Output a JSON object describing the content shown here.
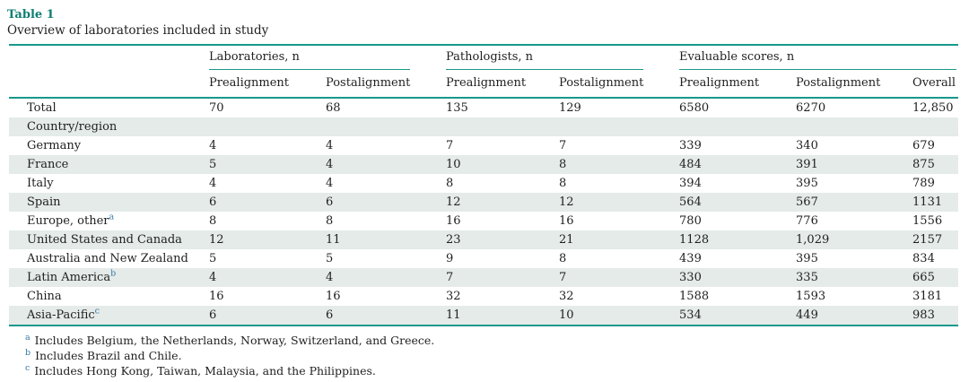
{
  "table": {
    "label": "Table 1",
    "caption": "Overview of laboratories included in study",
    "col_groups": [
      {
        "label": "Laboratories, n",
        "cols": [
          "Prealignment",
          "Postalignment"
        ]
      },
      {
        "label": "Pathologists, n",
        "cols": [
          "Prealignment",
          "Postalignment"
        ]
      },
      {
        "label": "Evaluable scores, n",
        "cols": [
          "Prealignment",
          "Postalignment",
          "Overall"
        ]
      }
    ],
    "rows": [
      {
        "label": "Total",
        "sup": "",
        "section": false,
        "values": [
          "70",
          "68",
          "135",
          "129",
          "6580",
          "6270",
          "12,850"
        ]
      },
      {
        "label": "Country/region",
        "sup": "",
        "section": true,
        "values": [
          "",
          "",
          "",
          "",
          "",
          "",
          ""
        ]
      },
      {
        "label": "Germany",
        "sup": "",
        "section": false,
        "values": [
          "4",
          "4",
          "7",
          "7",
          "339",
          "340",
          "679"
        ]
      },
      {
        "label": "France",
        "sup": "",
        "section": false,
        "values": [
          "5",
          "4",
          "10",
          "8",
          "484",
          "391",
          "875"
        ]
      },
      {
        "label": "Italy",
        "sup": "",
        "section": false,
        "values": [
          "4",
          "4",
          "8",
          "8",
          "394",
          "395",
          "789"
        ]
      },
      {
        "label": "Spain",
        "sup": "",
        "section": false,
        "values": [
          "6",
          "6",
          "12",
          "12",
          "564",
          "567",
          "1131"
        ]
      },
      {
        "label": "Europe, other",
        "sup": "a",
        "section": false,
        "values": [
          "8",
          "8",
          "16",
          "16",
          "780",
          "776",
          "1556"
        ]
      },
      {
        "label": "United States and Canada",
        "sup": "",
        "section": false,
        "values": [
          "12",
          "11",
          "23",
          "21",
          "1128",
          "1,029",
          "2157"
        ]
      },
      {
        "label": "Australia and New Zealand",
        "sup": "",
        "section": false,
        "values": [
          "5",
          "5",
          "9",
          "8",
          "439",
          "395",
          "834"
        ]
      },
      {
        "label": "Latin America",
        "sup": "b",
        "section": false,
        "values": [
          "4",
          "4",
          "7",
          "7",
          "330",
          "335",
          "665"
        ]
      },
      {
        "label": "China",
        "sup": "",
        "section": false,
        "values": [
          "16",
          "16",
          "32",
          "32",
          "1588",
          "1593",
          "3181"
        ]
      },
      {
        "label": "Asia-Pacific",
        "sup": "c",
        "section": false,
        "values": [
          "6",
          "6",
          "11",
          "10",
          "534",
          "449",
          "983"
        ]
      }
    ],
    "footnotes": [
      {
        "marker": "a",
        "text": "Includes Belgium, the Netherlands, Norway, Switzerland, and Greece."
      },
      {
        "marker": "b",
        "text": "Includes Brazil and Chile."
      },
      {
        "marker": "c",
        "text": "Includes Hong Kong, Taiwan, Malaysia, and the Philippines."
      }
    ],
    "colors": {
      "rule_teal": "#17998b",
      "title_teal": "#0e7f74",
      "row_shade": "#e4ebe8",
      "footnote_marker": "#3679a9",
      "text": "#1f1f1f"
    }
  }
}
